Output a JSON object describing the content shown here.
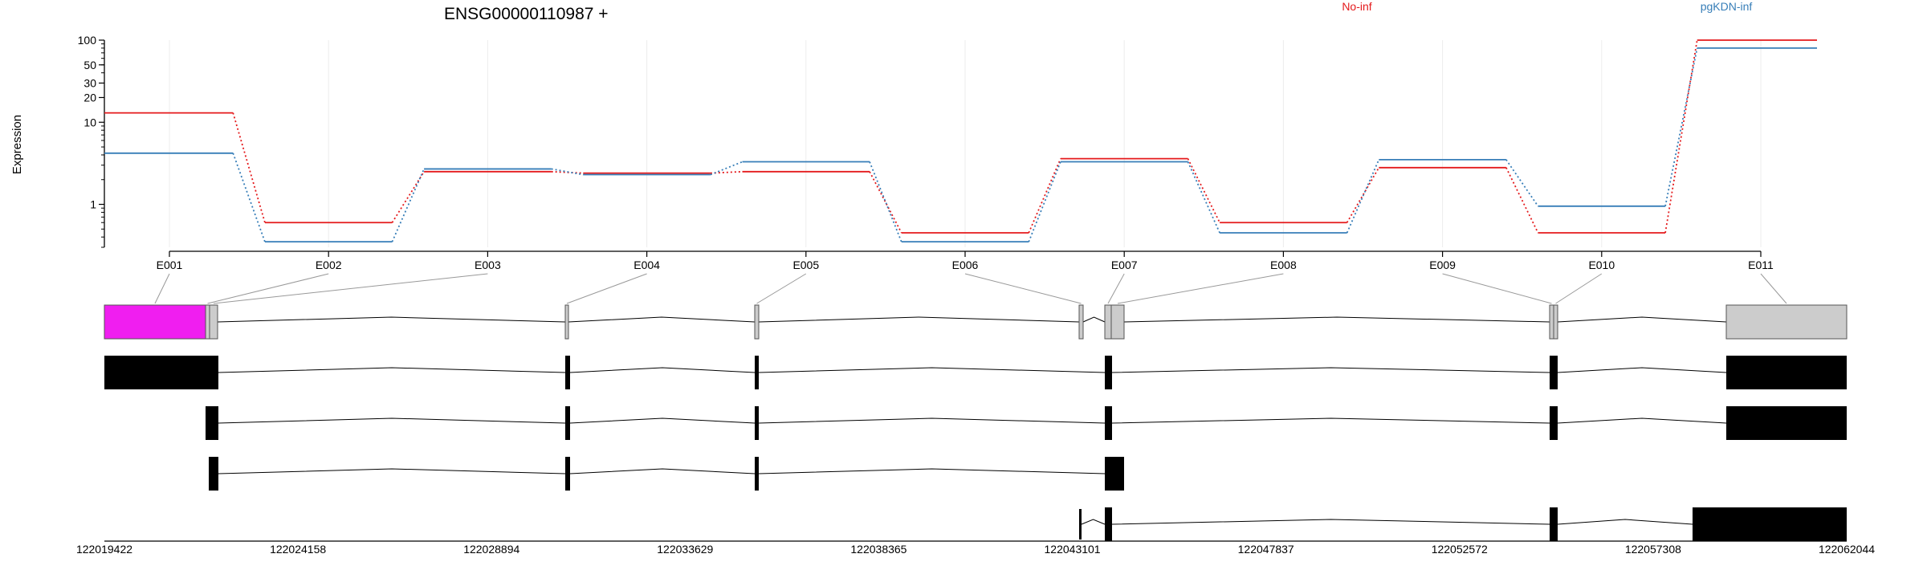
{
  "chart_data": {
    "type": "line",
    "title": "ENSG00000110987 +",
    "ylabel": "Expression",
    "y_scale": "log",
    "ylim": [
      0.3,
      100
    ],
    "y_ticks": [
      "1",
      "10",
      "20",
      "30",
      "50",
      "100"
    ],
    "categories": [
      "E001",
      "E002",
      "E003",
      "E004",
      "E005",
      "E006",
      "E007",
      "E008",
      "E009",
      "E010",
      "E011"
    ],
    "legend": [
      "No-inf",
      "pgKDN-inf"
    ],
    "series": [
      {
        "name": "No-inf",
        "color": "#e41a1c",
        "values": [
          13,
          0.6,
          2.5,
          2.4,
          2.5,
          0.45,
          3.6,
          0.6,
          2.8,
          0.45,
          100
        ]
      },
      {
        "name": "pgKDN-inf",
        "color": "#377eb8",
        "values": [
          4.2,
          0.35,
          2.7,
          2.3,
          3.3,
          0.35,
          3.3,
          0.45,
          3.5,
          0.95,
          80
        ]
      }
    ],
    "genomic_axis": {
      "ticks": [
        "122019422",
        "122024158",
        "122028894",
        "122033629",
        "122038365",
        "122043101",
        "122047837",
        "122052572",
        "122057308",
        "122062044"
      ],
      "range": [
        122019422,
        122062044
      ]
    },
    "exon_fill_colors": [
      "#f01ef0",
      "#cccccc",
      "#cccccc",
      "#cccccc",
      "#cccccc",
      "#cccccc",
      "#cccccc",
      "#cccccc",
      "#cccccc",
      "#cccccc",
      "#cccccc"
    ],
    "grid": "vertical-light",
    "legend_placement": "top"
  }
}
